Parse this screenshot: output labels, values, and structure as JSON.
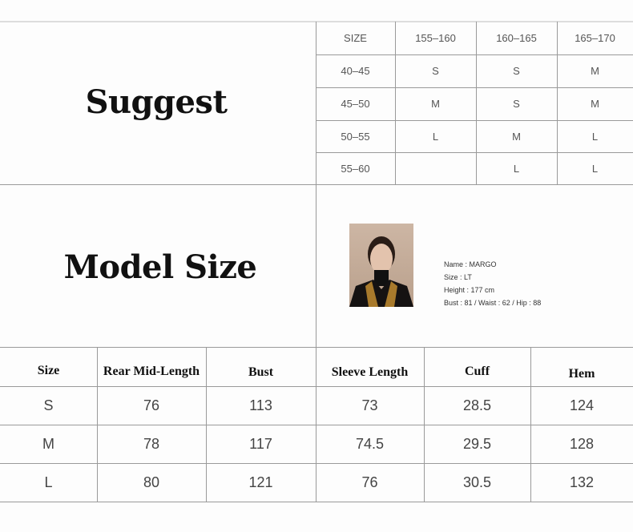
{
  "suggest": {
    "title": "Suggest",
    "header": [
      "SIZE",
      "155–160",
      "160–165",
      "165–170"
    ],
    "rows": [
      [
        "40–45",
        "S",
        "S",
        "M"
      ],
      [
        "45–50",
        "M",
        "S",
        "M"
      ],
      [
        "50–55",
        "L",
        "M",
        "L"
      ],
      [
        "55–60",
        "",
        "L",
        "L"
      ]
    ]
  },
  "model": {
    "title": "Model Size",
    "name": "Name : MARGO",
    "size": "Size : LT",
    "height": "Height : 177  cm",
    "measurements": "Bust : 81 / Waist : 62 / Hip : 88"
  },
  "measure": {
    "header": [
      "Size",
      "Rear Mid-Length",
      "Bust",
      "Sleeve Length",
      "Cuff",
      "Hem"
    ],
    "rows": [
      [
        "S",
        "76",
        "113",
        "73",
        "28.5",
        "124"
      ],
      [
        "M",
        "78",
        "117",
        "74.5",
        "29.5",
        "128"
      ],
      [
        "L",
        "80",
        "121",
        "76",
        "30.5",
        "132"
      ]
    ]
  }
}
